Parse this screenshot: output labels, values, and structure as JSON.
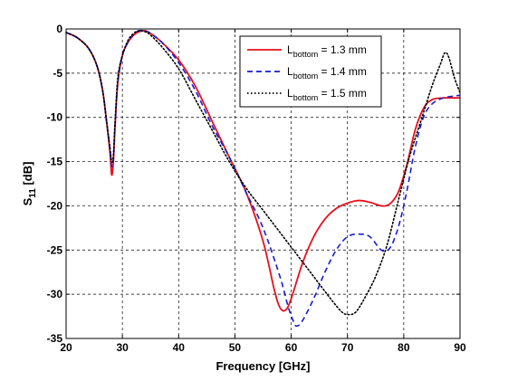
{
  "chart_data": {
    "type": "line",
    "xlabel": "Frequency [GHz]",
    "ylabel": "S11 [dB]",
    "ylabel_main": "S",
    "ylabel_sub": "11",
    "ylabel_unit": " [dB]",
    "xlim": [
      20,
      90
    ],
    "ylim": [
      -35,
      0
    ],
    "xticks": [
      20,
      30,
      40,
      50,
      60,
      70,
      80,
      90
    ],
    "yticks": [
      -35,
      -30,
      -25,
      -20,
      -15,
      -10,
      -5,
      0
    ],
    "grid": true,
    "grid_style": "dashed",
    "legend_position": "top-right",
    "series": [
      {
        "name": "Lbottom = 1.3 mm",
        "legend": {
          "prefix": "L",
          "sub": "bottom",
          "suffix": " = 1.3 mm"
        },
        "color": "#e8101c",
        "dash": "solid",
        "x": [
          20,
          22,
          24,
          25.5,
          26.5,
          27.2,
          27.8,
          28.1,
          28.4,
          28.7,
          29.2,
          30,
          31,
          32,
          33,
          34,
          35,
          37,
          40,
          43,
          46,
          49,
          52,
          55,
          57,
          58,
          59,
          60,
          62,
          64,
          66,
          68,
          70,
          72,
          74,
          76,
          77.5,
          79,
          80.5,
          82,
          83.5,
          85,
          87,
          90
        ],
        "y": [
          -0.4,
          -1.0,
          -2.2,
          -4.2,
          -7.0,
          -10.5,
          -14.0,
          -16.5,
          -15.0,
          -11.0,
          -6.0,
          -3.0,
          -1.5,
          -0.7,
          -0.3,
          -0.2,
          -0.5,
          -1.5,
          -3.5,
          -6.5,
          -10.5,
          -14.5,
          -18.5,
          -24.0,
          -29.5,
          -31.5,
          -31.8,
          -30.5,
          -26.5,
          -23.5,
          -21.5,
          -20.3,
          -19.7,
          -19.4,
          -19.6,
          -20.0,
          -19.8,
          -18.5,
          -15.5,
          -11.5,
          -9.0,
          -8.0,
          -7.8,
          -7.8
        ]
      },
      {
        "name": "Lbottom = 1.4 mm",
        "legend": {
          "prefix": "L",
          "sub": "bottom",
          "suffix": " = 1.4 mm"
        },
        "color": "#1a1ad6",
        "dash": "dashed",
        "x": [
          20,
          22,
          24,
          25.5,
          26.5,
          27.2,
          27.8,
          28.1,
          28.4,
          28.7,
          29.2,
          30,
          31,
          32,
          33,
          34,
          35,
          37,
          40,
          43,
          46,
          49,
          52,
          55,
          58,
          59.5,
          60.5,
          61,
          62,
          64,
          66,
          68,
          70,
          72,
          74,
          76,
          77.5,
          79,
          80.5,
          82,
          83.5,
          85,
          87,
          90
        ],
        "y": [
          -0.4,
          -1.0,
          -2.2,
          -4.2,
          -7.0,
          -10.5,
          -13.5,
          -15.5,
          -14.8,
          -11.0,
          -6.0,
          -3.0,
          -1.5,
          -0.6,
          -0.2,
          -0.2,
          -0.5,
          -1.5,
          -3.8,
          -7.0,
          -11.0,
          -14.5,
          -18.5,
          -22.5,
          -28.0,
          -31.5,
          -33.2,
          -33.6,
          -33.0,
          -30.5,
          -27.5,
          -25.0,
          -23.5,
          -23.2,
          -23.5,
          -25.0,
          -24.8,
          -22.5,
          -18.5,
          -13.5,
          -10.0,
          -8.5,
          -7.8,
          -7.5
        ]
      },
      {
        "name": "Lbottom = 1.5 mm",
        "legend": {
          "prefix": "L",
          "sub": "bottom",
          "suffix": " = 1.5 mm"
        },
        "color": "#000000",
        "dash": "dotted",
        "x": [
          20,
          22,
          24,
          25.5,
          26.5,
          27.2,
          27.8,
          28.1,
          28.4,
          28.7,
          29.2,
          30,
          31,
          32,
          33,
          34,
          35,
          37,
          40,
          43,
          46,
          49,
          52,
          55,
          58,
          61,
          64,
          67,
          69,
          70.2,
          71.5,
          73,
          75,
          77,
          79,
          81,
          83,
          85,
          86.5,
          87.3,
          88,
          89,
          90
        ],
        "y": [
          -0.4,
          -1.0,
          -2.2,
          -4.2,
          -7.0,
          -10.5,
          -13.5,
          -15.0,
          -14.3,
          -10.5,
          -5.5,
          -3.0,
          -1.3,
          -0.5,
          -0.2,
          -0.3,
          -0.7,
          -2.0,
          -4.5,
          -8.0,
          -11.5,
          -15.0,
          -18.0,
          -20.5,
          -23.0,
          -25.5,
          -28.0,
          -30.5,
          -32.0,
          -32.3,
          -32.0,
          -30.5,
          -28.0,
          -24.5,
          -19.5,
          -14.5,
          -10.5,
          -6.5,
          -4.0,
          -2.7,
          -3.2,
          -5.5,
          -7.2
        ]
      }
    ]
  }
}
